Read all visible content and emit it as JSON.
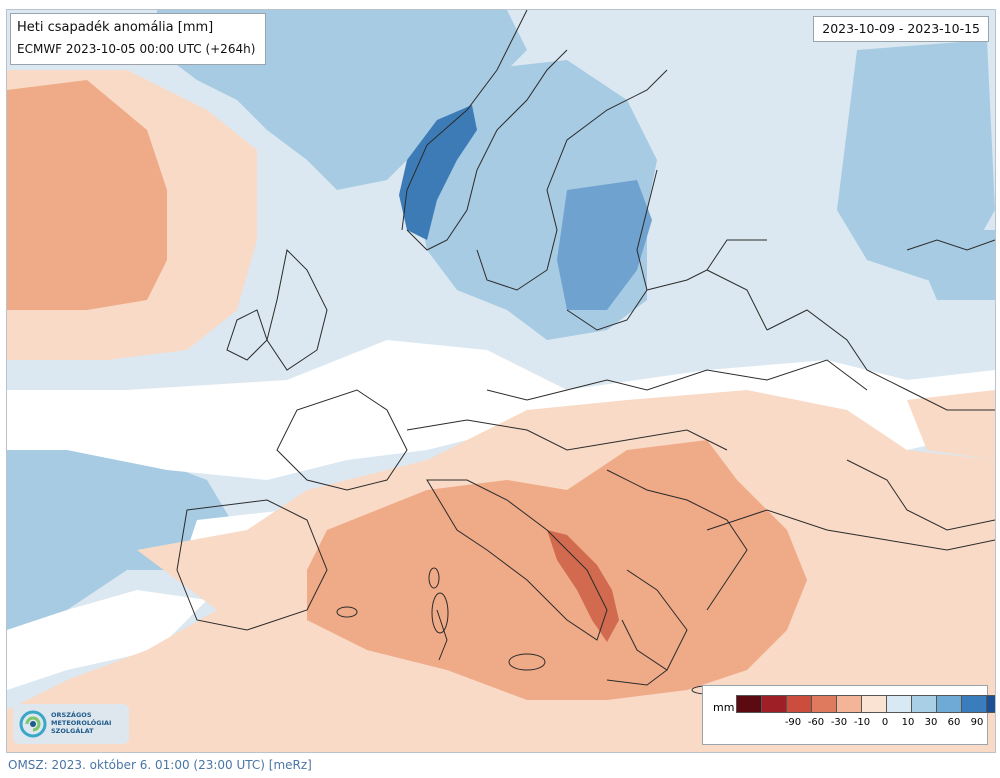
{
  "map": {
    "title": "Heti csapadék anomália [mm]",
    "model_run": "ECMWF 2023-10-05 00:00 UTC (+264h)",
    "period": "2023-10-09 - 2023-10-15",
    "colors": {
      "strong_positive": "#3d7bb6",
      "positive": "#85b4d8",
      "weak_positive": "#cde1ef",
      "neutral": "#ffffff",
      "weak_negative": "#f9dac6",
      "negative": "#efaa88",
      "strong_negative": "#df8163",
      "very_negative": "#c8503f",
      "border": "#2b2b2b"
    }
  },
  "legend": {
    "unit": "mm",
    "colors": [
      "#5c0a11",
      "#9f1f26",
      "#cc4d3c",
      "#e07a5f",
      "#f3b497",
      "#fbe3d4",
      "#d9e9f4",
      "#a9cfe6",
      "#6fa9d5",
      "#3a7dbd",
      "#1c4f95",
      "#0b2d66"
    ],
    "ticks": [
      "-90",
      "-60",
      "-30",
      "-10",
      "0",
      "10",
      "30",
      "60",
      "90"
    ]
  },
  "logo": {
    "line1": "ORSZÁGOS",
    "line2": "METEOROLÓGIAI",
    "line3": "SZOLGÁLAT"
  },
  "footer": {
    "text": "OMSZ: 2023. október 6. 01:00 (23:00 UTC) [meRz]"
  }
}
